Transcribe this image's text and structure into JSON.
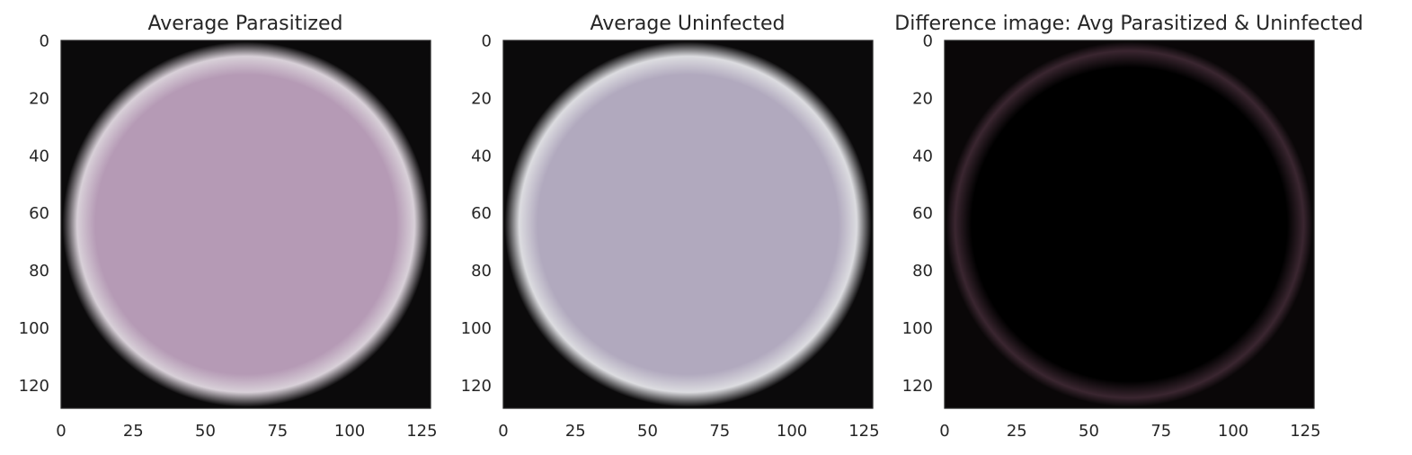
{
  "chart_data": [
    {
      "type": "image",
      "title": "Average Parasitized",
      "xlabel": "",
      "ylabel": "",
      "xlim": [
        0,
        128
      ],
      "ylim": [
        128,
        0
      ],
      "xticks": [
        0,
        25,
        50,
        75,
        100,
        125
      ],
      "yticks": [
        0,
        20,
        40,
        60,
        80,
        100,
        120
      ],
      "grid": false,
      "image": {
        "shape": "round cell",
        "fill_color": "#b59ab5",
        "edge_color": "#d8d0d8",
        "background_color": "#0b0a0b"
      }
    },
    {
      "type": "image",
      "title": "Average Uninfected",
      "xlabel": "",
      "ylabel": "",
      "xlim": [
        0,
        128
      ],
      "ylim": [
        128,
        0
      ],
      "xticks": [
        0,
        25,
        50,
        75,
        100,
        125
      ],
      "yticks": [
        0,
        20,
        40,
        60,
        80,
        100,
        120
      ],
      "grid": false,
      "image": {
        "shape": "round cell",
        "fill_color": "#b1a9be",
        "edge_color": "#dcdce0",
        "background_color": "#0b0a0b"
      }
    },
    {
      "type": "image",
      "title": "Difference image: Avg Parasitized & Uninfected",
      "xlabel": "",
      "ylabel": "",
      "xlim": [
        0,
        128
      ],
      "ylim": [
        128,
        0
      ],
      "xticks": [
        0,
        25,
        50,
        75,
        100,
        125
      ],
      "yticks": [
        0,
        20,
        40,
        60,
        80,
        100,
        120
      ],
      "grid": false,
      "image": {
        "shape": "faint ring",
        "fill_color": "#000000",
        "edge_color": "#3a2630",
        "background_color": "#0a0708"
      }
    }
  ]
}
